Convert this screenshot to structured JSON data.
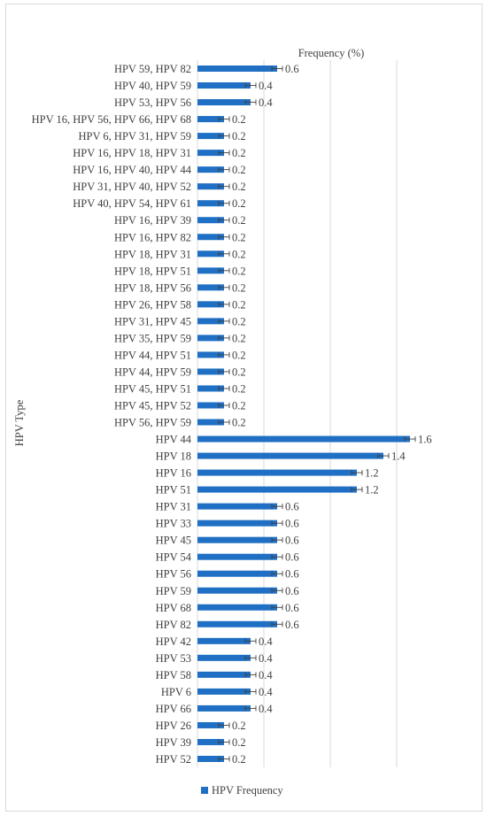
{
  "chart_data": {
    "type": "bar",
    "orientation": "horizontal",
    "title": "",
    "xlabel": "Frequency (%)",
    "ylabel": "HPV Type",
    "xlim": [
      0,
      1.8
    ],
    "grid": true,
    "legend_position": "bottom",
    "error_bars": true,
    "categories": [
      "HPV 59, HPV 82",
      "HPV 40, HPV 59",
      "HPV 53, HPV 56",
      "HPV 16, HPV 56, HPV 66, HPV 68",
      "HPV 6, HPV 31, HPV 59",
      "HPV 16, HPV 18, HPV 31",
      "HPV 16, HPV 40, HPV 44",
      "HPV 31, HPV 40, HPV 52",
      "HPV 40, HPV 54, HPV 61",
      "HPV 16, HPV 39",
      "HPV 16, HPV 82",
      "HPV 18, HPV 31",
      "HPV 18, HPV 51",
      "HPV 18, HPV 56",
      "HPV 26, HPV 58",
      "HPV 31, HPV 45",
      "HPV 35, HPV 59",
      "HPV 44, HPV 51",
      "HPV 44, HPV 59",
      "HPV 45, HPV 51",
      "HPV 45, HPV 52",
      "HPV 56, HPV 59",
      "HPV 44",
      "HPV 18",
      "HPV 16",
      "HPV 51",
      "HPV 31",
      "HPV 33",
      "HPV 45",
      "HPV 54",
      "HPV 56",
      "HPV 59",
      "HPV 68",
      "HPV 82",
      "HPV 42",
      "HPV 53",
      "HPV 58",
      "HPV 6",
      "HPV 66",
      "HPV 26",
      "HPV 39",
      "HPV 52"
    ],
    "series": [
      {
        "name": "HPV Frequency",
        "color": "#1f6fc4",
        "values": [
          0.6,
          0.4,
          0.4,
          0.2,
          0.2,
          0.2,
          0.2,
          0.2,
          0.2,
          0.2,
          0.2,
          0.2,
          0.2,
          0.2,
          0.2,
          0.2,
          0.2,
          0.2,
          0.2,
          0.2,
          0.2,
          0.2,
          1.6,
          1.4,
          1.2,
          1.2,
          0.6,
          0.6,
          0.6,
          0.6,
          0.6,
          0.6,
          0.6,
          0.6,
          0.4,
          0.4,
          0.4,
          0.4,
          0.4,
          0.2,
          0.2,
          0.2
        ],
        "labels": [
          "0.6",
          "0.4",
          "0.4",
          "0.2",
          "0.2",
          "0.2",
          "0.2",
          "0.2",
          "0.2",
          "0.2",
          "0.2",
          "0.2",
          "0.2",
          "0.2",
          "0.2",
          "0.2",
          "0.2",
          "0.2",
          "0.2",
          "0.2",
          "0.2",
          "0.2",
          "1.6",
          "1.4",
          "1.2",
          "1.2",
          "0.6",
          "0.6",
          "0.6",
          "0.6",
          "0.6",
          "0.6",
          "0.6",
          "0.6",
          "0.4",
          "0.4",
          "0.4",
          "0.4",
          "0.4",
          "0.2",
          "0.2",
          "0.2"
        ]
      }
    ]
  }
}
